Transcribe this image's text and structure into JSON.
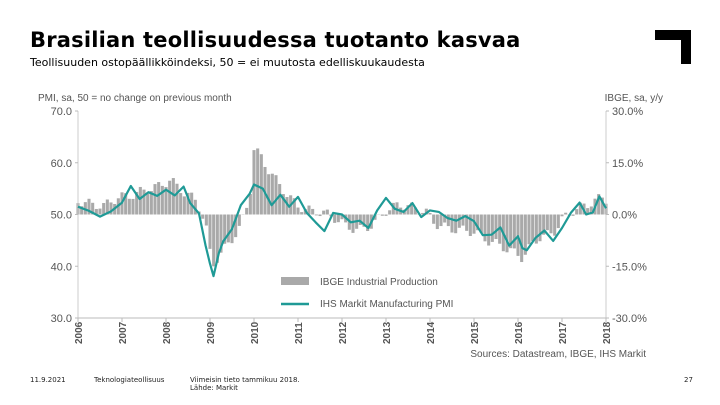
{
  "slide": {
    "title": "Brasilian teollisuudessa tuotanto kasvaa",
    "subtitle": "Teollisuuden ostopäällikköindeksi, 50 = ei muutosta edelliskuukaudesta",
    "footer": {
      "date": "11.9.2021",
      "org": "Teknologiateollisuus",
      "note_line1": "Viimeisin tieto tammikuu 2018.",
      "note_line2": "Lähde: Markit",
      "page": "27"
    }
  },
  "colors": {
    "pmi_line": "#1f9a96",
    "ibge_bars": "#a9a9a9",
    "axis_text": "#555555",
    "logo": "#000000"
  },
  "chart_data": {
    "type": "bar+line",
    "left_axis_title": "PMI, sa, 50 = no change on previous month",
    "right_axis_title": "IBGE, sa, y/y",
    "left_ylim": [
      30,
      70
    ],
    "right_ylim": [
      -30,
      30
    ],
    "left_ticks": [
      "70.0",
      "60.0",
      "50.0",
      "40.0",
      "30.0"
    ],
    "right_ticks": [
      "30.0%",
      "15.0%",
      "0.0%",
      "-15.0%",
      "-30.0%"
    ],
    "x_ticks": [
      "2006",
      "2007",
      "2008",
      "2009",
      "2010",
      "2011",
      "2012",
      "2013",
      "2014",
      "2015",
      "2016",
      "2017",
      "2018"
    ],
    "x_start_year": 2006,
    "legend": [
      "IBGE Industrial Production",
      "IHS Markit Manufacturing PMI"
    ],
    "source": "Sources: Datastream, IBGE, IHS Markit",
    "series": [
      {
        "name": "IHS Markit Manufacturing PMI",
        "axis": "left",
        "type": "line",
        "points": [
          [
            2006.0,
            51.5
          ],
          [
            2006.25,
            50.7
          ],
          [
            2006.5,
            49.6
          ],
          [
            2006.75,
            50.6
          ],
          [
            2007.0,
            52.3
          ],
          [
            2007.2,
            55.5
          ],
          [
            2007.4,
            53.0
          ],
          [
            2007.6,
            54.3
          ],
          [
            2007.8,
            53.6
          ],
          [
            2008.0,
            54.8
          ],
          [
            2008.2,
            53.7
          ],
          [
            2008.4,
            55.4
          ],
          [
            2008.55,
            52.2
          ],
          [
            2008.75,
            50.2
          ],
          [
            2008.9,
            44.0
          ],
          [
            2009.0,
            40.5
          ],
          [
            2009.08,
            38.1
          ],
          [
            2009.2,
            42.5
          ],
          [
            2009.3,
            44.8
          ],
          [
            2009.5,
            47.2
          ],
          [
            2009.7,
            51.8
          ],
          [
            2009.9,
            54.0
          ],
          [
            2010.0,
            55.8
          ],
          [
            2010.2,
            55.0
          ],
          [
            2010.4,
            51.8
          ],
          [
            2010.6,
            53.8
          ],
          [
            2010.8,
            51.5
          ],
          [
            2011.0,
            53.4
          ],
          [
            2011.2,
            50.3
          ],
          [
            2011.4,
            48.5
          ],
          [
            2011.6,
            46.8
          ],
          [
            2011.8,
            50.3
          ],
          [
            2012.0,
            50.0
          ],
          [
            2012.2,
            48.5
          ],
          [
            2012.4,
            48.8
          ],
          [
            2012.6,
            47.4
          ],
          [
            2012.8,
            50.8
          ],
          [
            2013.0,
            53.2
          ],
          [
            2013.2,
            51.1
          ],
          [
            2013.4,
            50.5
          ],
          [
            2013.6,
            52.2
          ],
          [
            2013.8,
            49.5
          ],
          [
            2014.0,
            50.8
          ],
          [
            2014.2,
            50.5
          ],
          [
            2014.4,
            49.3
          ],
          [
            2014.6,
            48.8
          ],
          [
            2014.8,
            49.7
          ],
          [
            2015.0,
            48.7
          ],
          [
            2015.2,
            46.0
          ],
          [
            2015.4,
            46.1
          ],
          [
            2015.6,
            47.5
          ],
          [
            2015.8,
            44.0
          ],
          [
            2016.0,
            45.8
          ],
          [
            2016.1,
            43.5
          ],
          [
            2016.2,
            43.1
          ],
          [
            2016.4,
            45.5
          ],
          [
            2016.6,
            46.9
          ],
          [
            2016.8,
            44.9
          ],
          [
            2017.0,
            47.4
          ],
          [
            2017.2,
            50.3
          ],
          [
            2017.4,
            52.3
          ],
          [
            2017.55,
            50.0
          ],
          [
            2017.7,
            50.4
          ],
          [
            2017.85,
            53.5
          ],
          [
            2018.0,
            51.2
          ]
        ]
      },
      {
        "name": "IBGE Industrial Production",
        "axis": "right",
        "type": "bar",
        "points": [
          [
            2006.0,
            4.0
          ],
          [
            2006.3,
            3.0
          ],
          [
            2006.6,
            2.5
          ],
          [
            2006.9,
            5.0
          ],
          [
            2007.2,
            5.5
          ],
          [
            2007.5,
            7.0
          ],
          [
            2007.8,
            8.0
          ],
          [
            2008.1,
            10.0
          ],
          [
            2008.4,
            6.5
          ],
          [
            2008.7,
            4.0
          ],
          [
            2008.9,
            -3.0
          ],
          [
            2009.05,
            -15.0
          ],
          [
            2009.2,
            -12.0
          ],
          [
            2009.45,
            -8.0
          ],
          [
            2009.7,
            -3.5
          ],
          [
            2009.9,
            5.0
          ],
          [
            2010.0,
            19.0
          ],
          [
            2010.15,
            17.0
          ],
          [
            2010.3,
            13.5
          ],
          [
            2010.5,
            10.0
          ],
          [
            2010.8,
            5.0
          ],
          [
            2011.0,
            2.5
          ],
          [
            2011.3,
            1.0
          ],
          [
            2011.6,
            0.5
          ],
          [
            2011.9,
            -1.5
          ],
          [
            2012.1,
            -3.5
          ],
          [
            2012.4,
            -4.5
          ],
          [
            2012.7,
            -3.0
          ],
          [
            2013.0,
            1.0
          ],
          [
            2013.3,
            3.0
          ],
          [
            2013.6,
            2.0
          ],
          [
            2013.9,
            1.0
          ],
          [
            2014.1,
            -2.5
          ],
          [
            2014.4,
            -4.0
          ],
          [
            2014.7,
            -4.5
          ],
          [
            2015.0,
            -5.0
          ],
          [
            2015.3,
            -7.5
          ],
          [
            2015.6,
            -9.0
          ],
          [
            2015.9,
            -11.0
          ],
          [
            2016.1,
            -12.5
          ],
          [
            2016.3,
            -9.0
          ],
          [
            2016.5,
            -6.5
          ],
          [
            2016.8,
            -5.5
          ],
          [
            2017.0,
            -1.5
          ],
          [
            2017.3,
            1.5
          ],
          [
            2017.6,
            3.0
          ],
          [
            2017.9,
            5.0
          ],
          [
            2018.0,
            4.5
          ]
        ]
      }
    ]
  }
}
